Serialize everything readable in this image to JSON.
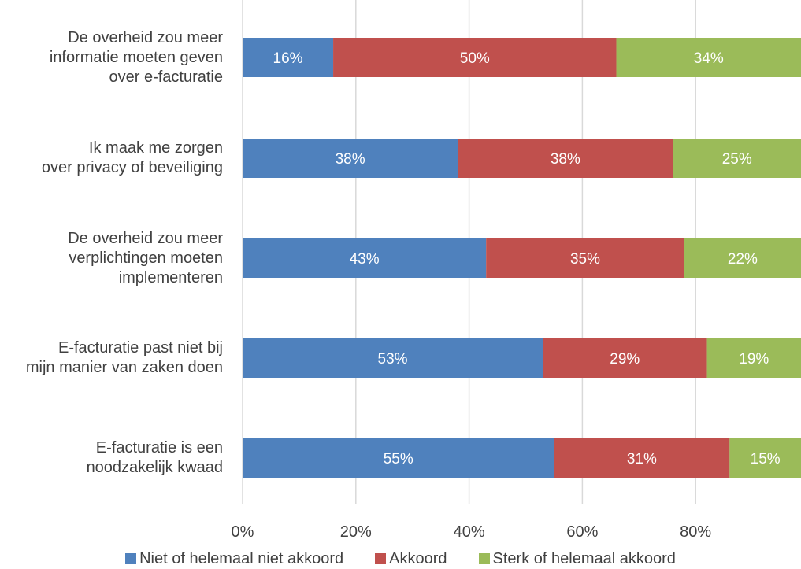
{
  "colors": {
    "series1": "#4F81BD",
    "series2": "#C0504D",
    "series3": "#9BBB59",
    "grid": "#D9D9D9",
    "text": "#404040",
    "bar_label": "#FFFFFF"
  },
  "chart_data": {
    "type": "bar",
    "orientation": "horizontal",
    "stacked": true,
    "grid": true,
    "legend_position": "bottom",
    "xlim": [
      0,
      100
    ],
    "x_ticks": [
      "0%",
      "20%",
      "40%",
      "60%",
      "80%"
    ],
    "categories": [
      "De overheid zou meer informatie moeten geven over e-facturatie",
      "Ik maak me zorgen over privacy of beveiliging",
      "De overheid zou meer verplichtingen moeten implementeren",
      "E-facturatie past niet bij mijn manier van zaken doen",
      "E-facturatie is een noodzakelijk kwaad"
    ],
    "category_lines": [
      [
        "De overheid zou meer",
        "informatie moeten geven",
        "over e-facturatie"
      ],
      [
        "Ik maak me zorgen",
        "over privacy of beveiliging"
      ],
      [
        "De overheid zou meer",
        "verplichtingen moeten",
        "implementeren"
      ],
      [
        "E-facturatie past niet bij",
        "mijn manier van zaken doen"
      ],
      [
        "E-facturatie is een",
        "noodzakelijk kwaad"
      ]
    ],
    "series": [
      {
        "name": "Niet of helemaal niet akkoord",
        "values": [
          16,
          38,
          43,
          53,
          55
        ],
        "labels": [
          "16%",
          "38%",
          "43%",
          "53%",
          "55%"
        ]
      },
      {
        "name": "Akkoord",
        "values": [
          50,
          38,
          35,
          29,
          31
        ],
        "labels": [
          "50%",
          "38%",
          "35%",
          "29%",
          "31%"
        ]
      },
      {
        "name": "Sterk of helemaal akkoord",
        "values": [
          34,
          25,
          22,
          19,
          15
        ],
        "labels": [
          "34%",
          "25%",
          "22%",
          "19%",
          "15%"
        ]
      }
    ]
  }
}
